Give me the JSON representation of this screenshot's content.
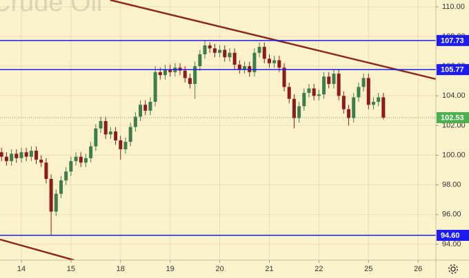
{
  "chart_data": {
    "type": "candlestick",
    "watermark": "Crude Oil",
    "x": [
      -0.4,
      -0.3,
      -0.2,
      -0.1,
      0.0,
      0.1,
      0.2,
      0.3,
      0.4,
      0.5,
      0.6,
      0.7,
      0.8,
      0.9,
      1.0,
      1.1,
      1.2,
      1.3,
      1.4,
      1.5,
      1.6,
      1.7,
      1.8,
      1.9,
      2.0,
      2.1,
      2.2,
      2.3,
      2.4,
      2.5,
      2.6,
      2.7,
      2.8,
      2.9,
      3.0,
      3.1,
      3.2,
      3.3,
      3.4,
      3.5,
      3.6,
      3.7,
      3.8,
      3.9,
      4.0,
      4.1,
      4.2,
      4.3,
      4.4,
      4.5,
      4.6,
      4.7,
      4.8,
      4.9,
      5.0,
      5.1,
      5.2,
      5.3,
      5.4,
      5.5,
      5.6,
      5.7,
      5.8,
      5.9,
      6.0,
      6.1,
      6.2,
      6.3,
      6.4,
      6.5,
      6.6,
      6.7,
      6.8,
      6.9,
      7.0,
      7.1,
      7.2,
      7.3
    ],
    "open": [
      100.2,
      99.9,
      99.6,
      100.1,
      99.8,
      100.2,
      99.9,
      100.3,
      99.7,
      99.5,
      98.4,
      96.2,
      97.4,
      98.3,
      98.9,
      99.6,
      99.9,
      99.5,
      99.8,
      100.6,
      101.8,
      102.3,
      101.4,
      101.6,
      101.0,
      100.4,
      100.9,
      101.9,
      102.6,
      103.4,
      103.0,
      103.6,
      105.6,
      105.4,
      105.8,
      105.6,
      105.9,
      105.7,
      105.2,
      104.8,
      106.0,
      106.8,
      107.4,
      107.2,
      106.9,
      107.1,
      106.6,
      106.9,
      106.1,
      105.8,
      106.0,
      105.6,
      106.9,
      107.3,
      106.5,
      106.2,
      106.4,
      105.9,
      104.6,
      103.8,
      102.5,
      103.3,
      104.2,
      104.5,
      104.0,
      104.1,
      105.3,
      104.8,
      105.5,
      104.0,
      103.1,
      102.5,
      103.9,
      104.6,
      105.2,
      103.4,
      103.6,
      103.9
    ],
    "high": [
      100.5,
      100.2,
      100.4,
      100.4,
      100.5,
      100.5,
      100.6,
      100.6,
      100.0,
      99.8,
      98.7,
      97.7,
      98.6,
      99.2,
      99.9,
      100.2,
      100.2,
      100.1,
      100.9,
      102.1,
      102.6,
      102.6,
      101.9,
      101.9,
      101.3,
      101.2,
      102.2,
      102.9,
      103.7,
      103.7,
      103.9,
      106.0,
      105.9,
      106.1,
      106.1,
      106.2,
      106.2,
      106.0,
      105.5,
      106.3,
      107.1,
      107.7,
      107.6,
      107.5,
      107.4,
      107.4,
      107.2,
      107.2,
      106.4,
      106.3,
      106.3,
      107.2,
      107.6,
      107.6,
      106.8,
      106.7,
      106.7,
      106.2,
      104.9,
      104.1,
      103.6,
      104.5,
      104.8,
      104.8,
      104.4,
      105.6,
      105.6,
      105.8,
      105.8,
      104.3,
      103.4,
      104.2,
      104.9,
      105.5,
      105.5,
      103.9,
      104.2,
      104.2
    ],
    "low": [
      99.6,
      99.3,
      99.3,
      99.5,
      99.5,
      99.6,
      99.6,
      99.4,
      99.2,
      98.1,
      94.6,
      95.9,
      97.1,
      98.0,
      98.6,
      99.3,
      99.2,
      99.2,
      99.5,
      100.3,
      101.5,
      101.1,
      101.1,
      100.7,
      99.7,
      100.1,
      100.6,
      101.6,
      102.3,
      102.7,
      102.7,
      103.3,
      105.1,
      105.1,
      105.3,
      105.3,
      105.4,
      104.9,
      104.5,
      103.8,
      105.7,
      106.5,
      106.9,
      106.6,
      106.6,
      106.3,
      106.3,
      105.8,
      105.5,
      105.5,
      105.3,
      105.3,
      106.6,
      106.2,
      105.9,
      105.9,
      105.6,
      104.3,
      103.5,
      101.8,
      102.2,
      103.0,
      103.9,
      103.7,
      103.7,
      103.8,
      104.5,
      104.5,
      103.7,
      102.8,
      102.0,
      102.2,
      103.6,
      104.3,
      103.1,
      103.1,
      103.3,
      102.4
    ],
    "close": [
      99.9,
      99.6,
      100.1,
      99.8,
      100.2,
      99.9,
      100.3,
      99.7,
      99.5,
      98.4,
      96.2,
      97.4,
      98.3,
      98.9,
      99.6,
      99.9,
      99.5,
      99.8,
      100.6,
      101.8,
      102.3,
      101.4,
      101.6,
      101.0,
      100.4,
      100.9,
      101.9,
      102.6,
      103.4,
      103.0,
      103.6,
      105.6,
      105.4,
      105.8,
      105.6,
      105.9,
      105.7,
      105.2,
      104.8,
      106.0,
      106.8,
      107.4,
      107.2,
      106.9,
      107.1,
      106.6,
      106.9,
      106.1,
      105.8,
      106.0,
      105.6,
      106.9,
      107.3,
      106.5,
      106.2,
      106.4,
      105.9,
      104.6,
      103.8,
      102.5,
      103.3,
      104.2,
      104.5,
      104.0,
      104.1,
      105.3,
      104.8,
      105.5,
      104.0,
      103.1,
      102.5,
      103.9,
      104.6,
      105.2,
      103.4,
      103.6,
      103.9,
      102.53
    ],
    "up_color": "#3e7d4e",
    "down_color": "#8c1c1c",
    "xlim": [
      -0.431,
      8.359
    ],
    "ylim": [
      92.93,
      110.46
    ],
    "xticks": [
      {
        "value": 0,
        "label": "14"
      },
      {
        "value": 1,
        "label": "15"
      },
      {
        "value": 2,
        "label": "18"
      },
      {
        "value": 3,
        "label": "19"
      },
      {
        "value": 4,
        "label": "20"
      },
      {
        "value": 5,
        "label": "21"
      },
      {
        "value": 6,
        "label": "22"
      },
      {
        "value": 7,
        "label": "25"
      },
      {
        "value": 8,
        "label": "26"
      }
    ],
    "yticks": [
      {
        "value": 94,
        "label": "94.00"
      },
      {
        "value": 96,
        "label": "96.00"
      },
      {
        "value": 98,
        "label": "98.00"
      },
      {
        "value": 100,
        "label": "100.00"
      },
      {
        "value": 102,
        "label": "102.00"
      },
      {
        "value": 104,
        "label": "104.00"
      },
      {
        "value": 106,
        "label": "106.00"
      },
      {
        "value": 108,
        "label": "108.00"
      },
      {
        "value": 110,
        "label": "110.00"
      }
    ],
    "grid": true,
    "levels": [
      107.73,
      105.77,
      {
        "value": 94.6,
        "label": "94.60"
      }
    ],
    "level_color": "#1b1bf2",
    "last_price": 102.53,
    "last_price_color": "#4caf50",
    "trendlines": [
      {
        "x": [
          1.79,
          8.36
        ],
        "y": [
          110.46,
          105.13
        ]
      },
      {
        "x": [
          -0.43,
          1.06
        ],
        "y": [
          94.32,
          92.93
        ]
      }
    ],
    "trendline_color": "#8a2a1e"
  }
}
